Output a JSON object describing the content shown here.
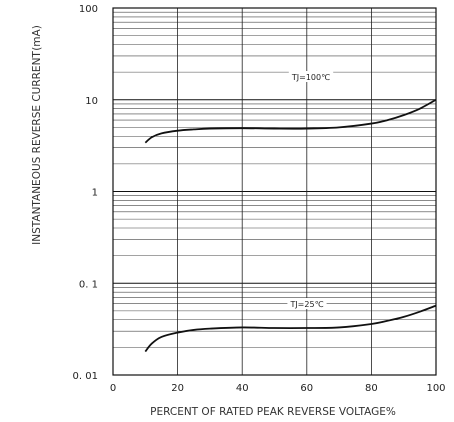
{
  "chart_data": {
    "type": "line",
    "title": "",
    "xlabel": "PERCENT OF RATED PEAK REVERSE VOLTAGE%",
    "ylabel": "INSTANTANEOUS REVERSE CURRENT",
    "yunit": "(mA)",
    "xlim": [
      0,
      100
    ],
    "ylim": [
      0.01,
      100
    ],
    "yscale": "log",
    "grid": true,
    "x_ticks": [
      "0",
      "20",
      "40",
      "60",
      "80",
      "100"
    ],
    "y_ticks": [
      "100",
      "10",
      "1",
      "0. 1",
      "0. 01"
    ],
    "series": [
      {
        "name": "TJ=100℃",
        "x": [
          10,
          12,
          15,
          20,
          25,
          30,
          40,
          50,
          60,
          70,
          80,
          85,
          90,
          95,
          100
        ],
        "y": [
          3.4,
          3.9,
          4.3,
          4.6,
          4.75,
          4.85,
          4.9,
          4.85,
          4.85,
          5.0,
          5.5,
          6.0,
          6.8,
          8.0,
          10.0
        ]
      },
      {
        "name": "TJ=25℃",
        "x": [
          10,
          12,
          15,
          20,
          25,
          30,
          40,
          50,
          60,
          70,
          80,
          85,
          90,
          95,
          100
        ],
        "y": [
          0.018,
          0.022,
          0.026,
          0.029,
          0.031,
          0.032,
          0.033,
          0.0325,
          0.0325,
          0.033,
          0.036,
          0.039,
          0.043,
          0.049,
          0.057
        ]
      }
    ]
  }
}
